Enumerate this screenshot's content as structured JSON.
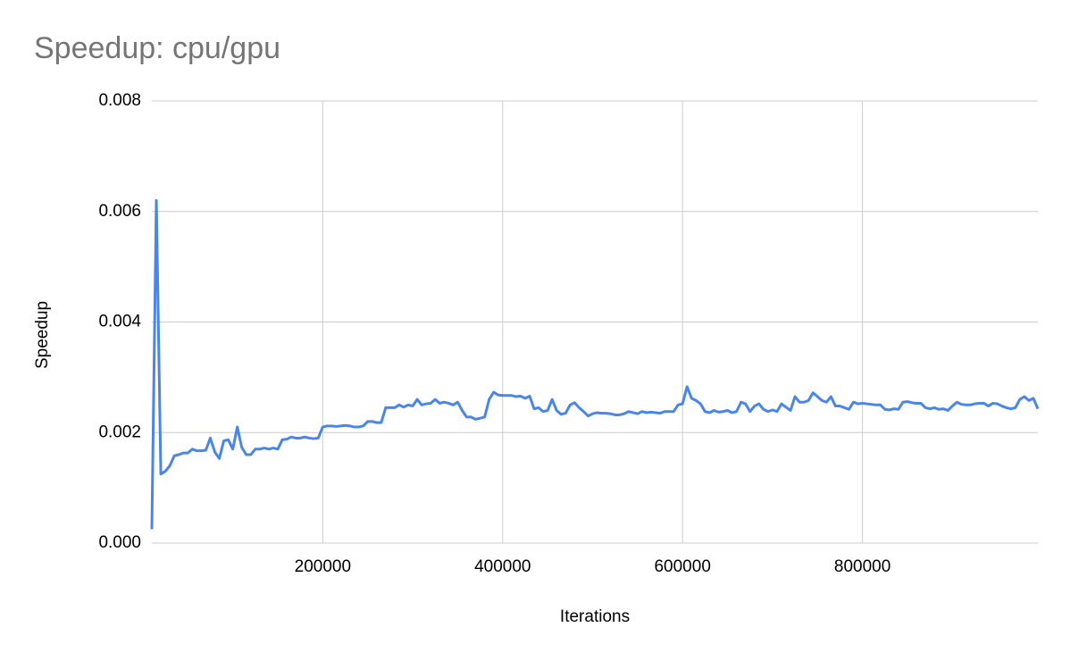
{
  "chart_data": {
    "type": "line",
    "title": "Speedup: cpu/gpu",
    "x_label": "Iterations",
    "y_label": "Speedup",
    "x": [
      10000,
      15000,
      20000,
      25000,
      30000,
      35000,
      40000,
      45000,
      50000,
      55000,
      60000,
      65000,
      70000,
      75000,
      80000,
      85000,
      90000,
      95000,
      100000,
      105000,
      110000,
      115000,
      120000,
      125000,
      130000,
      135000,
      140000,
      145000,
      150000,
      155000,
      160000,
      165000,
      170000,
      175000,
      180000,
      185000,
      190000,
      195000,
      200000,
      205000,
      210000,
      215000,
      220000,
      225000,
      230000,
      235000,
      240000,
      245000,
      250000,
      255000,
      260000,
      265000,
      270000,
      275000,
      280000,
      285000,
      290000,
      295000,
      300000,
      305000,
      310000,
      315000,
      320000,
      325000,
      330000,
      335000,
      340000,
      345000,
      350000,
      355000,
      360000,
      365000,
      370000,
      375000,
      380000,
      385000,
      390000,
      395000,
      400000,
      405000,
      410000,
      415000,
      420000,
      425000,
      430000,
      435000,
      440000,
      445000,
      450000,
      455000,
      460000,
      465000,
      470000,
      475000,
      480000,
      485000,
      490000,
      495000,
      500000,
      505000,
      510000,
      515000,
      520000,
      525000,
      530000,
      535000,
      540000,
      545000,
      550000,
      555000,
      560000,
      565000,
      570000,
      575000,
      580000,
      585000,
      590000,
      595000,
      600000,
      605000,
      610000,
      615000,
      620000,
      625000,
      630000,
      635000,
      640000,
      645000,
      650000,
      655000,
      660000,
      665000,
      670000,
      675000,
      680000,
      685000,
      690000,
      695000,
      700000,
      705000,
      710000,
      715000,
      720000,
      725000,
      730000,
      735000,
      740000,
      745000,
      750000,
      755000,
      760000,
      765000,
      770000,
      775000,
      780000,
      785000,
      790000,
      795000,
      800000,
      805000,
      810000,
      815000,
      820000,
      825000,
      830000,
      835000,
      840000,
      845000,
      850000,
      855000,
      860000,
      865000,
      870000,
      875000,
      880000,
      885000,
      890000,
      895000,
      900000,
      905000,
      910000,
      915000,
      920000,
      925000,
      930000,
      935000,
      940000,
      945000,
      950000,
      955000,
      960000,
      965000,
      970000,
      975000,
      980000,
      985000,
      990000,
      995000
    ],
    "series": [
      {
        "name": "Speedup",
        "color": "#4a86e8",
        "values": [
          0.00025,
          0.0062,
          0.00125,
          0.0013,
          0.0014,
          0.00158,
          0.0016,
          0.00163,
          0.00163,
          0.0017,
          0.00167,
          0.00167,
          0.00168,
          0.0019,
          0.00165,
          0.00153,
          0.00185,
          0.00187,
          0.0017,
          0.0021,
          0.00173,
          0.0016,
          0.0016,
          0.0017,
          0.0017,
          0.00172,
          0.0017,
          0.00172,
          0.0017,
          0.00187,
          0.00188,
          0.00192,
          0.0019,
          0.0019,
          0.00192,
          0.0019,
          0.00189,
          0.0019,
          0.0021,
          0.00212,
          0.00212,
          0.00211,
          0.00212,
          0.00213,
          0.00212,
          0.0021,
          0.0021,
          0.00212,
          0.0022,
          0.0022,
          0.00218,
          0.00218,
          0.00245,
          0.00245,
          0.00245,
          0.0025,
          0.00246,
          0.0025,
          0.00248,
          0.0026,
          0.0025,
          0.00252,
          0.00253,
          0.0026,
          0.00253,
          0.00255,
          0.00253,
          0.0025,
          0.00255,
          0.0024,
          0.00228,
          0.00228,
          0.00224,
          0.00226,
          0.00228,
          0.0026,
          0.00273,
          0.00268,
          0.00267,
          0.00267,
          0.00267,
          0.00265,
          0.00266,
          0.00262,
          0.00266,
          0.00243,
          0.00245,
          0.00238,
          0.0024,
          0.0026,
          0.0024,
          0.00233,
          0.00235,
          0.0025,
          0.00254,
          0.00245,
          0.00238,
          0.0023,
          0.00234,
          0.00236,
          0.00235,
          0.00235,
          0.00234,
          0.00232,
          0.00232,
          0.00234,
          0.00238,
          0.00236,
          0.00234,
          0.00238,
          0.00236,
          0.00237,
          0.00236,
          0.00235,
          0.00238,
          0.00238,
          0.00238,
          0.0025,
          0.00252,
          0.00283,
          0.00262,
          0.00258,
          0.00252,
          0.00238,
          0.00236,
          0.0024,
          0.00237,
          0.00238,
          0.0024,
          0.00236,
          0.00238,
          0.00255,
          0.00252,
          0.00238,
          0.00248,
          0.00252,
          0.00242,
          0.00238,
          0.00241,
          0.00238,
          0.00252,
          0.00246,
          0.0024,
          0.00265,
          0.00255,
          0.00255,
          0.00258,
          0.00272,
          0.00265,
          0.00258,
          0.00255,
          0.00265,
          0.00248,
          0.00248,
          0.00245,
          0.00242,
          0.00255,
          0.00252,
          0.00253,
          0.00252,
          0.00251,
          0.0025,
          0.0025,
          0.00242,
          0.00241,
          0.00243,
          0.00242,
          0.00255,
          0.00256,
          0.00254,
          0.00253,
          0.00253,
          0.00245,
          0.00243,
          0.00245,
          0.00242,
          0.00243,
          0.0024,
          0.00248,
          0.00255,
          0.00251,
          0.0025,
          0.0025,
          0.00252,
          0.00253,
          0.00253,
          0.00248,
          0.00253,
          0.00252,
          0.00248,
          0.00245,
          0.00243,
          0.00245,
          0.0026,
          0.00265,
          0.00258,
          0.00262,
          0.00243
        ]
      }
    ],
    "xlim": [
      10000,
      995000
    ],
    "xticks": [
      200000,
      400000,
      600000,
      800000
    ],
    "ylim": [
      0,
      0.008
    ],
    "yticks": [
      {
        "value": 0,
        "label": "0.000"
      },
      0.002,
      0.004,
      0.006,
      0.008
    ],
    "grid": true
  }
}
